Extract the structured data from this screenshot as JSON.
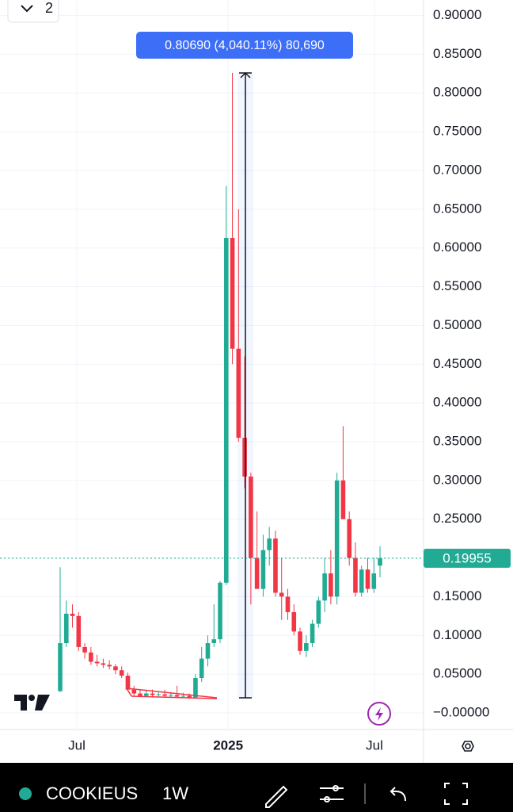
{
  "chart_data": {
    "type": "candlestick",
    "symbol": "COOKIEUS",
    "interval": "1W",
    "layout_count": "2",
    "measure_label": "0.80690 (4,040.11%) 80,690",
    "last_price": {
      "value": 0.19955,
      "label": "0.19955"
    },
    "up_color": "#22ab94",
    "down_color": "#f23645",
    "grid": true,
    "categories": [
      null,
      null,
      null,
      null,
      null,
      null,
      null,
      null,
      null,
      null,
      null,
      null,
      null,
      null,
      null,
      null,
      null,
      null,
      null,
      null,
      null,
      null,
      null,
      null,
      null,
      null,
      null,
      null,
      null,
      null,
      null,
      null,
      null,
      null,
      null,
      null,
      null,
      null,
      null,
      null,
      null,
      null,
      null,
      null,
      null,
      null,
      null,
      null,
      null,
      null,
      null,
      null,
      null
    ],
    "open": [
      0.028,
      0.09,
      0.128,
      0.125,
      0.085,
      0.078,
      0.066,
      0.064,
      0.062,
      0.06,
      0.055,
      0.048,
      0.03,
      0.025,
      0.022,
      0.025,
      0.023,
      0.024,
      0.022,
      0.023,
      0.021,
      0.022,
      0.02,
      0.045,
      0.07,
      0.09,
      0.095,
      0.168,
      0.613,
      0.47,
      0.355,
      0.305,
      0.2,
      0.16,
      0.21,
      0.225,
      0.155,
      0.15,
      0.13,
      0.105,
      0.08,
      0.09,
      0.115,
      0.145,
      0.18,
      0.15,
      0.3,
      0.25,
      0.2,
      0.155,
      0.185,
      0.16,
      0.19
    ],
    "high": [
      0.188,
      0.145,
      0.14,
      0.13,
      0.09,
      0.085,
      0.075,
      0.07,
      0.068,
      0.063,
      0.06,
      0.052,
      0.035,
      0.03,
      0.03,
      0.03,
      0.028,
      0.03,
      0.027,
      0.035,
      0.026,
      0.025,
      0.05,
      0.085,
      0.1,
      0.14,
      0.17,
      0.68,
      0.826,
      0.65,
      0.46,
      0.31,
      0.26,
      0.23,
      0.24,
      0.235,
      0.2,
      0.16,
      0.14,
      0.11,
      0.1,
      0.12,
      0.15,
      0.2,
      0.21,
      0.31,
      0.37,
      0.26,
      0.22,
      0.19,
      0.2,
      0.2,
      0.215
    ],
    "low": [
      0.027,
      0.085,
      0.11,
      0.08,
      0.07,
      0.062,
      0.06,
      0.058,
      0.056,
      0.05,
      0.045,
      0.028,
      0.022,
      0.02,
      0.02,
      0.021,
      0.02,
      0.021,
      0.019,
      0.02,
      0.019,
      0.018,
      0.018,
      0.04,
      0.06,
      0.085,
      0.09,
      0.165,
      0.45,
      0.35,
      0.29,
      0.14,
      0.16,
      0.15,
      0.19,
      0.15,
      0.12,
      0.12,
      0.1,
      0.075,
      0.072,
      0.085,
      0.11,
      0.13,
      0.14,
      0.14,
      0.25,
      0.19,
      0.15,
      0.15,
      0.155,
      0.155,
      0.175
    ],
    "close": [
      0.09,
      0.128,
      0.125,
      0.085,
      0.078,
      0.066,
      0.064,
      0.062,
      0.06,
      0.055,
      0.048,
      0.03,
      0.025,
      0.022,
      0.025,
      0.023,
      0.024,
      0.022,
      0.023,
      0.021,
      0.022,
      0.02,
      0.045,
      0.07,
      0.09,
      0.095,
      0.168,
      0.613,
      0.47,
      0.355,
      0.305,
      0.2,
      0.16,
      0.21,
      0.225,
      0.155,
      0.15,
      0.13,
      0.105,
      0.08,
      0.09,
      0.115,
      0.145,
      0.18,
      0.15,
      0.3,
      0.25,
      0.2,
      0.155,
      0.185,
      0.16,
      0.18,
      0.19955
    ],
    "xticks": [
      {
        "value": 2.7,
        "label": "Jul"
      },
      {
        "value": 27.3,
        "label": "2025"
      },
      {
        "value": 51.1,
        "label": "Jul"
      }
    ],
    "ylim": [
      -0.0215,
      0.92
    ],
    "yticks": [
      {
        "value": 0.9,
        "label": "0.90000"
      },
      {
        "value": 0.85,
        "label": "0.85000"
      },
      {
        "value": 0.8,
        "label": "0.80000"
      },
      {
        "value": 0.75,
        "label": "0.75000"
      },
      {
        "value": 0.7,
        "label": "0.70000"
      },
      {
        "value": 0.65,
        "label": "0.65000"
      },
      {
        "value": 0.6,
        "label": "0.60000"
      },
      {
        "value": 0.55,
        "label": "0.55000"
      },
      {
        "value": 0.5,
        "label": "0.50000"
      },
      {
        "value": 0.45,
        "label": "0.45000"
      },
      {
        "value": 0.4,
        "label": "0.40000"
      },
      {
        "value": 0.35,
        "label": "0.35000"
      },
      {
        "value": 0.3,
        "label": "0.30000"
      },
      {
        "value": 0.25,
        "label": "0.25000"
      },
      {
        "value": 0.2,
        "label": "0.20000"
      },
      {
        "value": 0.15,
        "label": "0.15000"
      },
      {
        "value": 0.1,
        "label": "0.10000"
      },
      {
        "value": 0.05,
        "label": "0.05000"
      },
      {
        "value": 0,
        "label": "−0.00000"
      }
    ]
  }
}
